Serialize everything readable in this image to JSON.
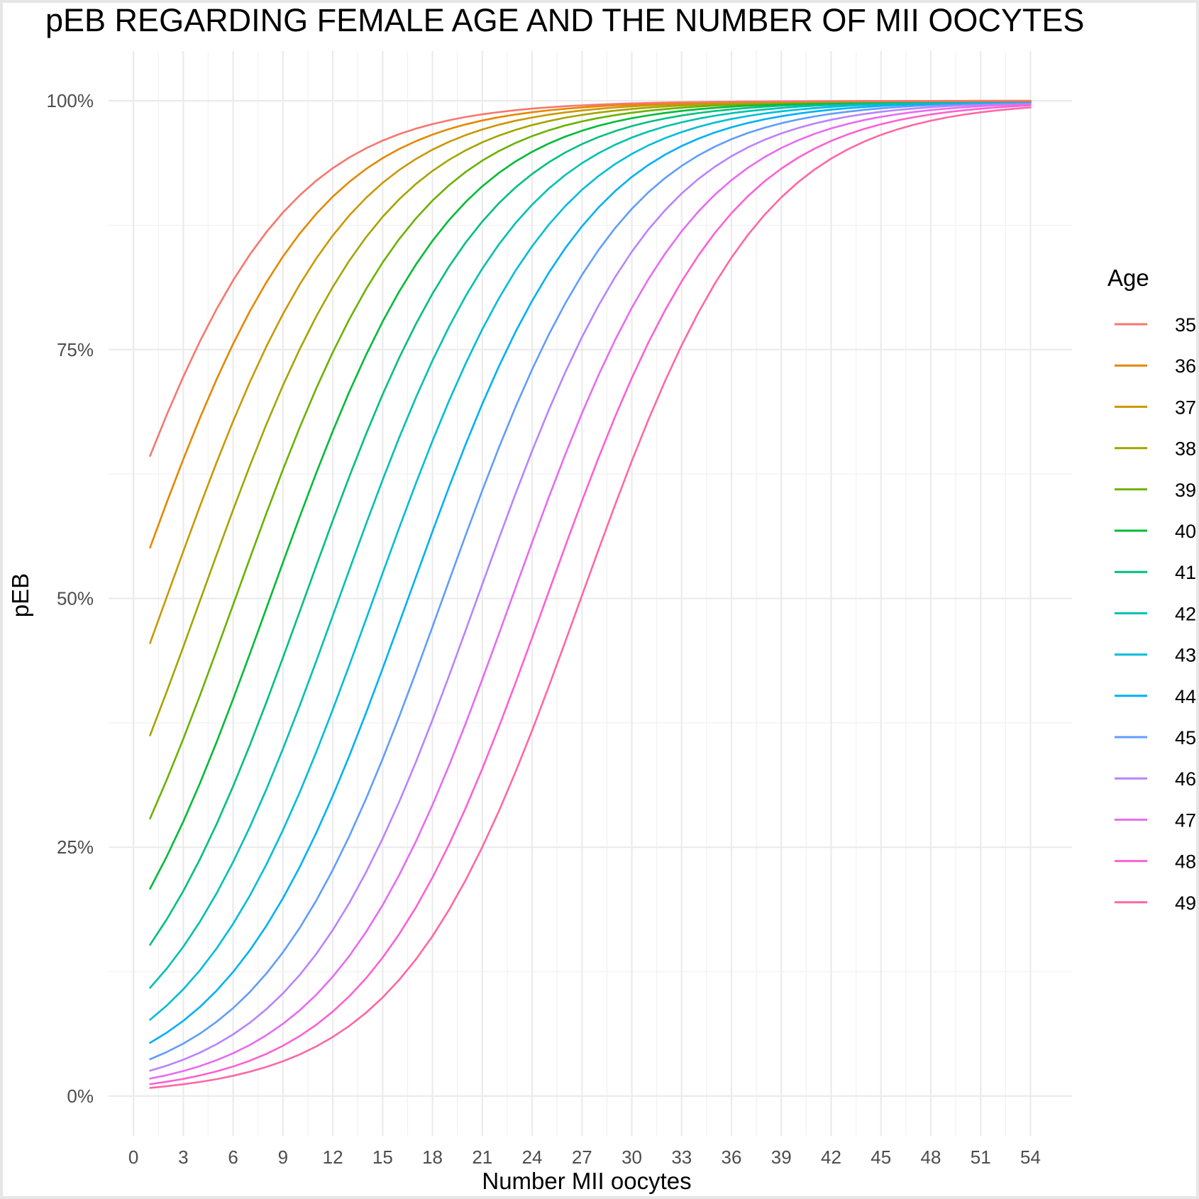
{
  "chart_data": {
    "type": "line",
    "title": "pEB REGARDING FEMALE AGE AND THE NUMBER OF MII OOCYTES",
    "xlabel": "Number MII oocytes",
    "ylabel": "pEB",
    "xlim": [
      -1.5,
      56.5
    ],
    "ylim": [
      -0.04,
      1.05
    ],
    "x_ticks": [
      0,
      3,
      6,
      9,
      12,
      15,
      18,
      21,
      24,
      27,
      30,
      33,
      36,
      39,
      42,
      45,
      48,
      51,
      54
    ],
    "x_tick_labels": [
      "0",
      "3",
      "6",
      "9",
      "12",
      "15",
      "18",
      "21",
      "24",
      "27",
      "30",
      "33",
      "36",
      "39",
      "42",
      "45",
      "48",
      "51",
      "54"
    ],
    "y_ticks": [
      0,
      0.25,
      0.5,
      0.75,
      1.0
    ],
    "y_tick_labels": [
      "0%",
      "25%",
      "50%",
      "75%",
      "100%"
    ],
    "grid": true,
    "legend_title": "Age",
    "legend_position": "right",
    "x_range": [
      1,
      54
    ],
    "series_model": "logistic: pEB = 1 / (1 + exp(-(a + b * x)))",
    "series": [
      {
        "name": "35",
        "color": "#F8766D",
        "a": 0.404,
        "b": 0.185
      },
      {
        "name": "36",
        "color": "#E58700",
        "a": 0.02,
        "b": 0.185
      },
      {
        "name": "37",
        "color": "#C99800",
        "a": -0.365,
        "b": 0.185
      },
      {
        "name": "38",
        "color": "#A3A500",
        "a": -0.75,
        "b": 0.185
      },
      {
        "name": "39",
        "color": "#6BB100",
        "a": -1.135,
        "b": 0.185
      },
      {
        "name": "40",
        "color": "#00BA38",
        "a": -1.52,
        "b": 0.185
      },
      {
        "name": "41",
        "color": "#00BF7D",
        "a": -1.904,
        "b": 0.185
      },
      {
        "name": "42",
        "color": "#00C0AF",
        "a": -2.289,
        "b": 0.185
      },
      {
        "name": "43",
        "color": "#00BCD8",
        "a": -2.674,
        "b": 0.185
      },
      {
        "name": "44",
        "color": "#00B0F6",
        "a": -3.059,
        "b": 0.185
      },
      {
        "name": "45",
        "color": "#619CFF",
        "a": -3.444,
        "b": 0.185
      },
      {
        "name": "46",
        "color": "#B983FF",
        "a": -3.828,
        "b": 0.185
      },
      {
        "name": "47",
        "color": "#E76BF3",
        "a": -4.213,
        "b": 0.185
      },
      {
        "name": "48",
        "color": "#FD61D1",
        "a": -4.598,
        "b": 0.185
      },
      {
        "name": "49",
        "color": "#FF67A4",
        "a": -4.983,
        "b": 0.185
      }
    ]
  }
}
